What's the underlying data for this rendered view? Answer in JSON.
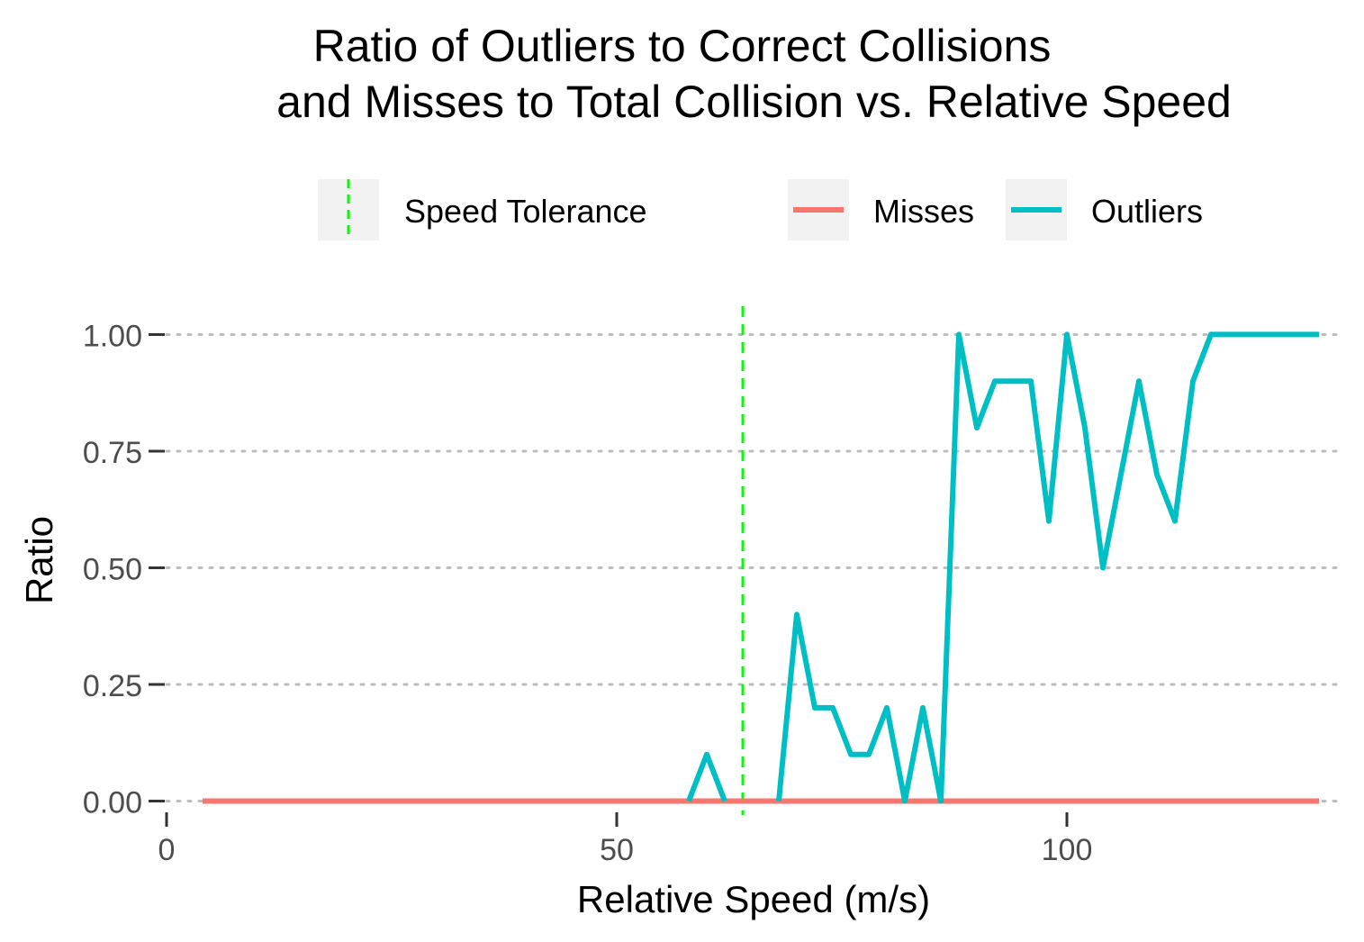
{
  "chart_data": {
    "type": "line",
    "title": "Ratio of Outliers to Correct Collisions",
    "subtitle": "and Misses to Total Collision vs. Relative Speed",
    "xlabel": "Relative Speed (m/s)",
    "ylabel": "Ratio",
    "xlim": [
      -2,
      130
    ],
    "ylim": [
      -0.03,
      1.08
    ],
    "x_ticks": [
      0,
      50,
      100
    ],
    "x_tick_labels": [
      "0",
      "50",
      "100"
    ],
    "y_ticks": [
      0,
      0.25,
      0.5,
      0.75,
      1
    ],
    "y_tick_labels": [
      "0.00",
      "0.25",
      "0.50",
      "0.75",
      "1.00"
    ],
    "grid": "horizontal dotted",
    "legend_position": "top",
    "vline": {
      "name": "Speed Tolerance",
      "x": 64,
      "color": "#00ff00",
      "linetype": "dashed"
    },
    "series": [
      {
        "name": "Misses",
        "color": "#f8766d",
        "x": [
          4,
          128
        ],
        "y": [
          0,
          0
        ]
      },
      {
        "name": "Outliers",
        "color": "#00bfc4",
        "segments": [
          {
            "x": [
              58,
              60,
              62
            ],
            "y": [
              0,
              0.1,
              0
            ]
          },
          {
            "x": [
              68,
              70,
              72,
              74,
              76,
              78,
              80,
              82,
              84,
              86,
              88,
              90,
              92,
              94,
              96,
              98,
              100,
              102,
              104,
              106,
              108,
              110,
              112,
              114,
              116,
              118,
              120,
              122,
              124,
              126,
              128
            ],
            "y": [
              0,
              0.4,
              0.2,
              0.2,
              0.1,
              0.1,
              0.2,
              0,
              0.2,
              0,
              1,
              0.8,
              0.9,
              0.9,
              0.9,
              0.6,
              1,
              0.8,
              0.5,
              0.7,
              0.9,
              0.7,
              0.6,
              0.9,
              1,
              1,
              1,
              1,
              1,
              1,
              1
            ]
          }
        ]
      }
    ]
  },
  "legend": {
    "items": [
      {
        "label": "Speed Tolerance"
      },
      {
        "label": "Misses"
      },
      {
        "label": "Outliers"
      }
    ]
  }
}
